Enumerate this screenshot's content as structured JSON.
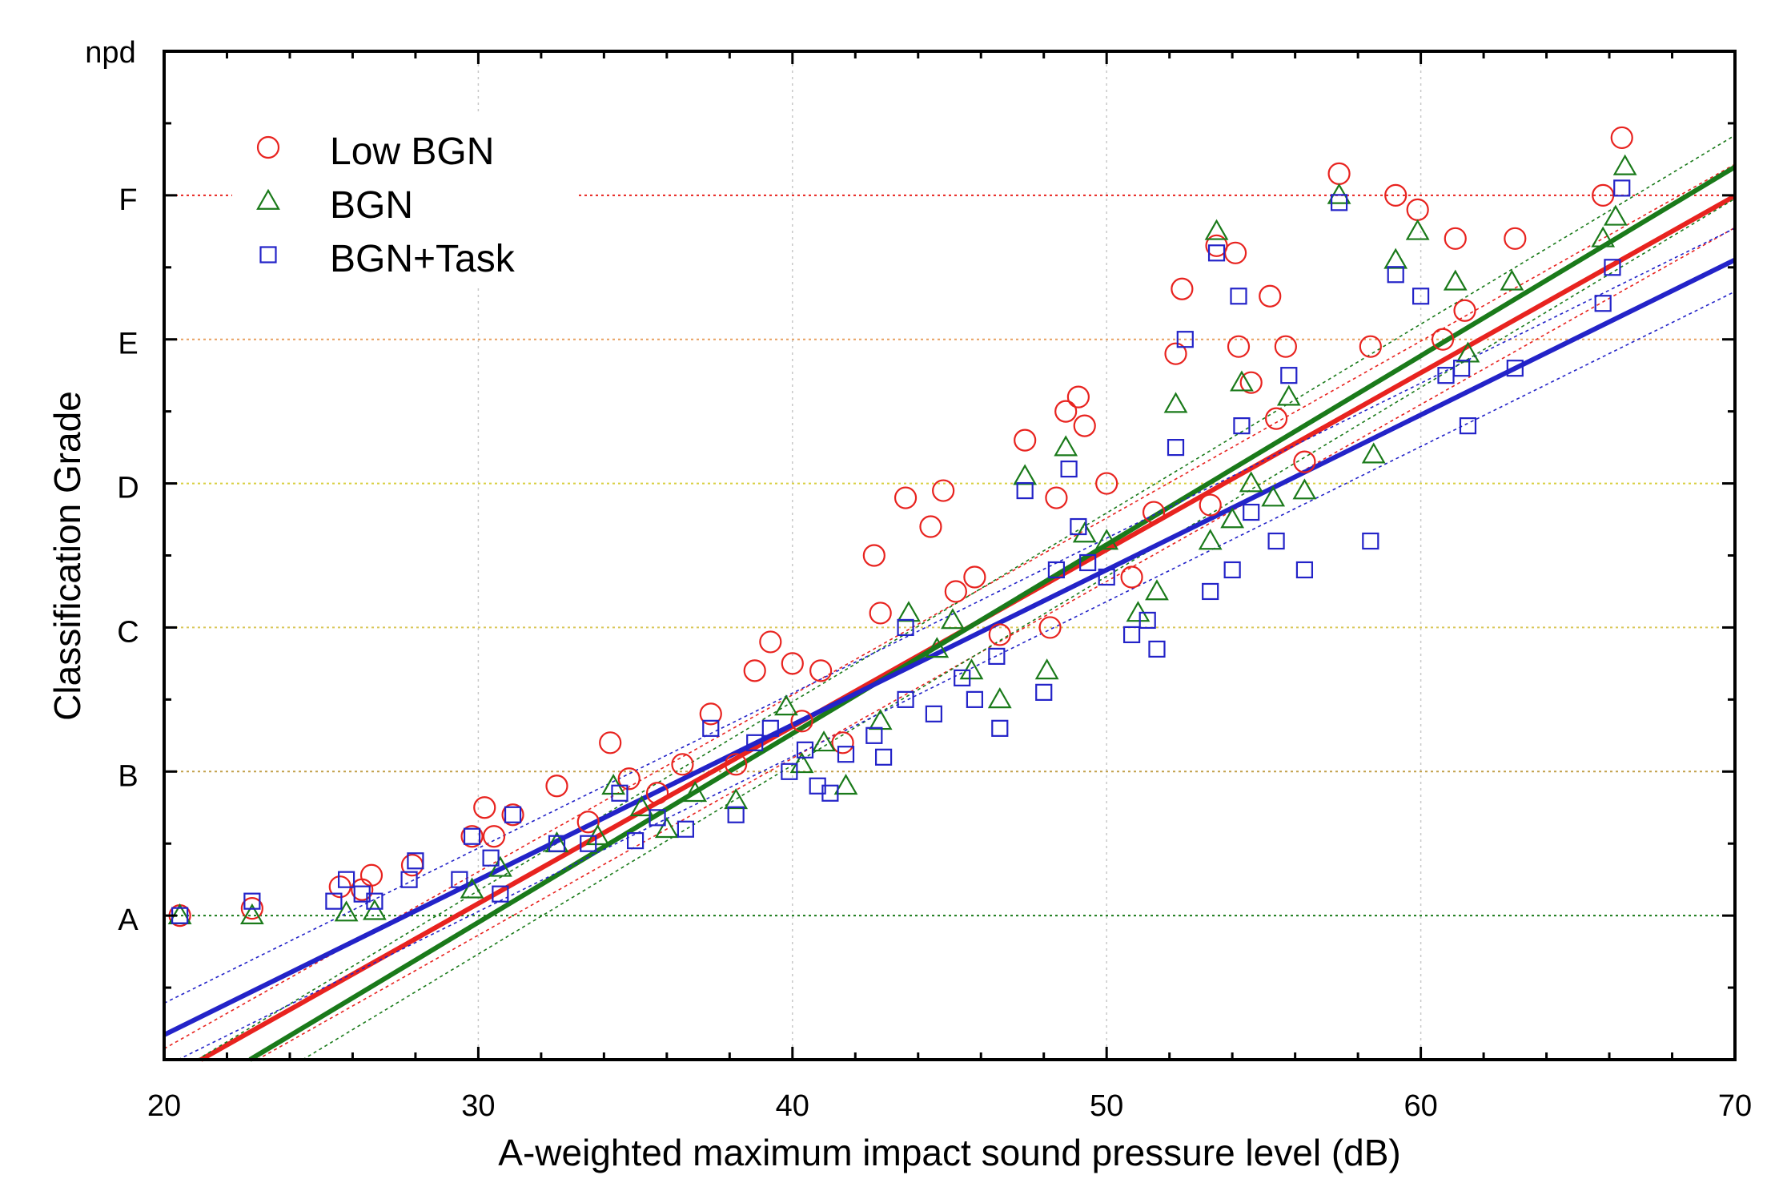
{
  "chart_data": {
    "type": "scatter",
    "title": "",
    "xlabel": "A-weighted maximum impact sound pressure level (dB)",
    "ylabel": "Classification Grade",
    "xlim": [
      20,
      70
    ],
    "ylim": [
      -1,
      6
    ],
    "x_ticks": [
      20,
      30,
      40,
      50,
      60,
      70
    ],
    "y_ticks": [
      0,
      1,
      2,
      3,
      4,
      5,
      6
    ],
    "y_tick_labels": [
      "A",
      "B",
      "C",
      "D",
      "E",
      "F",
      "npd"
    ],
    "grid": true,
    "legend_position": "top-left",
    "series": [
      {
        "name": "Low BGN",
        "marker": "circle",
        "color": "#e8231f",
        "fit": {
          "slope": 0.1228,
          "intercept": -3.6
        },
        "band": 0.22,
        "points": [
          [
            20.5,
            0
          ],
          [
            22.8,
            0.05
          ],
          [
            25.6,
            0.2
          ],
          [
            26.3,
            0.18
          ],
          [
            26.6,
            0.28
          ],
          [
            27.9,
            0.35
          ],
          [
            29.8,
            0.55
          ],
          [
            30.2,
            0.75
          ],
          [
            30.5,
            0.55
          ],
          [
            31.1,
            0.7
          ],
          [
            32.5,
            0.9
          ],
          [
            33.5,
            0.65
          ],
          [
            34.2,
            1.2
          ],
          [
            34.8,
            0.95
          ],
          [
            35.7,
            0.85
          ],
          [
            36.5,
            1.05
          ],
          [
            37.4,
            1.4
          ],
          [
            38.2,
            1.05
          ],
          [
            38.8,
            1.7
          ],
          [
            39.3,
            1.9
          ],
          [
            40,
            1.75
          ],
          [
            40.3,
            1.35
          ],
          [
            40.9,
            1.7
          ],
          [
            41.6,
            1.2
          ],
          [
            42.6,
            2.5
          ],
          [
            42.8,
            2.1
          ],
          [
            43.6,
            2.9
          ],
          [
            44.4,
            2.7
          ],
          [
            44.8,
            2.95
          ],
          [
            45.2,
            2.25
          ],
          [
            45.8,
            2.35
          ],
          [
            46.6,
            1.95
          ],
          [
            47.4,
            3.3
          ],
          [
            48.2,
            2
          ],
          [
            48.4,
            2.9
          ],
          [
            48.7,
            3.5
          ],
          [
            49.1,
            3.6
          ],
          [
            49.3,
            3.4
          ],
          [
            50,
            3
          ],
          [
            50.8,
            2.35
          ],
          [
            51.5,
            2.8
          ],
          [
            52.2,
            3.9
          ],
          [
            52.4,
            4.35
          ],
          [
            53.3,
            2.85
          ],
          [
            53.5,
            4.65
          ],
          [
            54.1,
            4.6
          ],
          [
            54.2,
            3.95
          ],
          [
            54.6,
            3.7
          ],
          [
            55.2,
            4.3
          ],
          [
            55.4,
            3.45
          ],
          [
            55.7,
            3.95
          ],
          [
            56.3,
            3.15
          ],
          [
            57.4,
            5.15
          ],
          [
            58.4,
            3.95
          ],
          [
            59.2,
            5
          ],
          [
            59.9,
            4.9
          ],
          [
            60.7,
            4
          ],
          [
            61.1,
            4.7
          ],
          [
            61.4,
            4.2
          ],
          [
            63,
            4.7
          ],
          [
            65.8,
            5
          ],
          [
            66.4,
            5.4
          ]
        ]
      },
      {
        "name": "BGN",
        "marker": "triangle",
        "color": "#1a7a1a",
        "fit": {
          "slope": 0.1311,
          "intercept": -3.98
        },
        "band": 0.22,
        "points": [
          [
            20.5,
            0
          ],
          [
            22.8,
            0
          ],
          [
            25.8,
            0.02
          ],
          [
            26.7,
            0.03
          ],
          [
            29.8,
            0.18
          ],
          [
            30.7,
            0.33
          ],
          [
            32.5,
            0.5
          ],
          [
            33.8,
            0.55
          ],
          [
            34.3,
            0.9
          ],
          [
            35.2,
            0.75
          ],
          [
            36,
            0.6
          ],
          [
            36.9,
            0.85
          ],
          [
            38.2,
            0.8
          ],
          [
            39.8,
            1.45
          ],
          [
            40.3,
            1.05
          ],
          [
            41,
            1.2
          ],
          [
            41.7,
            0.9
          ],
          [
            42.8,
            1.35
          ],
          [
            43.7,
            2.1
          ],
          [
            44.6,
            1.85
          ],
          [
            45.1,
            2.05
          ],
          [
            45.7,
            1.7
          ],
          [
            46.6,
            1.5
          ],
          [
            47.4,
            3.05
          ],
          [
            48.1,
            1.7
          ],
          [
            48.7,
            3.25
          ],
          [
            49.3,
            2.65
          ],
          [
            50,
            2.6
          ],
          [
            51,
            2.1
          ],
          [
            51.6,
            2.25
          ],
          [
            52.2,
            3.55
          ],
          [
            53.3,
            2.6
          ],
          [
            53.5,
            4.75
          ],
          [
            54,
            2.75
          ],
          [
            54.3,
            3.7
          ],
          [
            54.6,
            3
          ],
          [
            55.3,
            2.9
          ],
          [
            55.8,
            3.6
          ],
          [
            56.3,
            2.95
          ],
          [
            57.4,
            5
          ],
          [
            58.5,
            3.2
          ],
          [
            59.2,
            4.55
          ],
          [
            59.9,
            4.75
          ],
          [
            61.1,
            4.4
          ],
          [
            61.5,
            3.9
          ],
          [
            62.9,
            4.4
          ],
          [
            65.8,
            4.7
          ],
          [
            66.2,
            4.85
          ],
          [
            66.5,
            5.2
          ]
        ]
      },
      {
        "name": "BGN+Task",
        "marker": "square",
        "color": "#2323c8",
        "fit": {
          "slope": 0.1076,
          "intercept": -2.98
        },
        "band": 0.22,
        "points": [
          [
            20.5,
            0
          ],
          [
            22.8,
            0.1
          ],
          [
            25.4,
            0.1
          ],
          [
            25.8,
            0.25
          ],
          [
            26.3,
            0.15
          ],
          [
            26.7,
            0.1
          ],
          [
            27.8,
            0.25
          ],
          [
            28,
            0.38
          ],
          [
            29.4,
            0.25
          ],
          [
            29.8,
            0.55
          ],
          [
            30.4,
            0.4
          ],
          [
            30.7,
            0.15
          ],
          [
            31.1,
            0.7
          ],
          [
            32.5,
            0.5
          ],
          [
            33.5,
            0.5
          ],
          [
            34.5,
            0.85
          ],
          [
            35,
            0.52
          ],
          [
            35.7,
            0.68
          ],
          [
            36.6,
            0.6
          ],
          [
            37.4,
            1.3
          ],
          [
            38.2,
            0.7
          ],
          [
            38.8,
            1.2
          ],
          [
            39.3,
            1.3
          ],
          [
            39.9,
            1.0
          ],
          [
            40.4,
            1.15
          ],
          [
            40.8,
            0.9
          ],
          [
            41.2,
            0.85
          ],
          [
            41.7,
            1.12
          ],
          [
            42.6,
            1.25
          ],
          [
            42.9,
            1.1
          ],
          [
            43.6,
            2.0
          ],
          [
            43.6,
            1.5
          ],
          [
            44.5,
            1.4
          ],
          [
            45.4,
            1.65
          ],
          [
            45.8,
            1.5
          ],
          [
            46.5,
            1.8
          ],
          [
            46.6,
            1.3
          ],
          [
            47.4,
            2.95
          ],
          [
            48,
            1.55
          ],
          [
            48.4,
            2.4
          ],
          [
            48.8,
            3.1
          ],
          [
            49.1,
            2.7
          ],
          [
            49.4,
            2.45
          ],
          [
            50,
            2.35
          ],
          [
            50.8,
            1.95
          ],
          [
            51.3,
            2.05
          ],
          [
            51.6,
            1.85
          ],
          [
            52.2,
            3.25
          ],
          [
            52.5,
            4.0
          ],
          [
            53.3,
            2.25
          ],
          [
            53.5,
            4.6
          ],
          [
            54,
            2.4
          ],
          [
            54.2,
            4.3
          ],
          [
            54.3,
            3.4
          ],
          [
            54.6,
            2.8
          ],
          [
            55.4,
            2.6
          ],
          [
            55.8,
            3.75
          ],
          [
            56.3,
            2.4
          ],
          [
            57.4,
            4.95
          ],
          [
            58.4,
            2.6
          ],
          [
            59.2,
            4.45
          ],
          [
            60,
            4.3
          ],
          [
            60.8,
            3.75
          ],
          [
            61.3,
            3.8
          ],
          [
            61.5,
            3.4
          ],
          [
            63,
            3.8
          ],
          [
            65.8,
            4.25
          ],
          [
            66.1,
            4.5
          ],
          [
            66.4,
            5.05
          ]
        ]
      }
    ],
    "reference_lines": [
      {
        "y": 0,
        "color": "#1a7a1a"
      },
      {
        "y": 1,
        "color": "#c2a04a"
      },
      {
        "y": 2,
        "color": "#d9c75a"
      },
      {
        "y": 3,
        "color": "#d9cf40"
      },
      {
        "y": 4,
        "color": "#e8a060"
      },
      {
        "y": 5,
        "color": "#e8231f"
      }
    ]
  }
}
